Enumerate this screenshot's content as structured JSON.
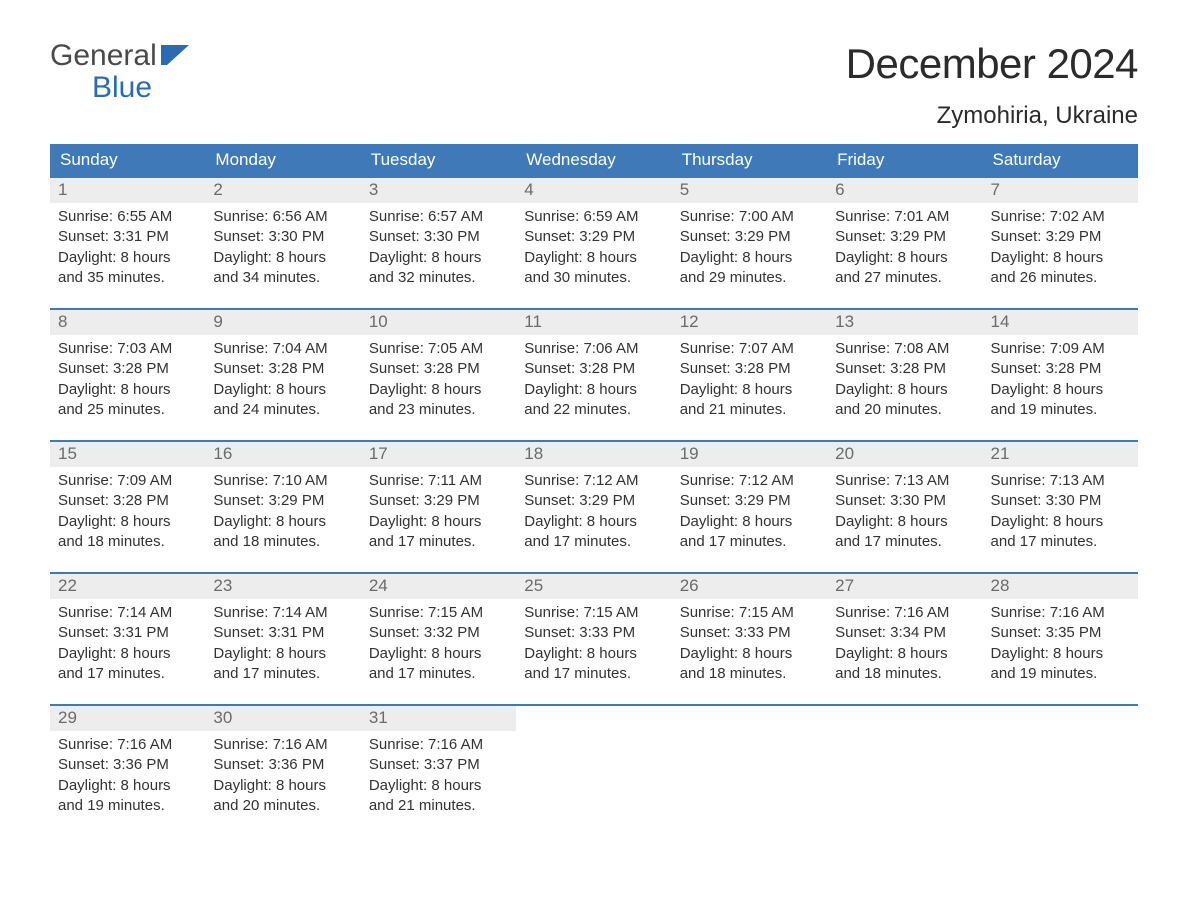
{
  "logo": {
    "word1": "General",
    "word2": "Blue"
  },
  "title": {
    "month": "December 2024",
    "location": "Zymohiria, Ukraine"
  },
  "colors": {
    "header_bg": "#3f79b7",
    "row_border": "#3f79b7",
    "daynum_bg": "#ededed",
    "daynum_fg": "#6b6b6b",
    "text": "#333333",
    "logo_gray": "#4a4a4a",
    "logo_blue": "#2b6bb2",
    "background": "#ffffff"
  },
  "typography": {
    "title_month_fontsize": 42,
    "title_location_fontsize": 24,
    "day_header_fontsize": 17,
    "day_number_fontsize": 17,
    "detail_fontsize": 15,
    "logo_fontsize": 30
  },
  "layout": {
    "columns": 7,
    "rows": 5,
    "cell_min_height": 120
  },
  "day_headers": [
    "Sunday",
    "Monday",
    "Tuesday",
    "Wednesday",
    "Thursday",
    "Friday",
    "Saturday"
  ],
  "weeks": [
    [
      {
        "day": "1",
        "sunrise": "Sunrise: 6:55 AM",
        "sunset": "Sunset: 3:31 PM",
        "dl1": "Daylight: 8 hours",
        "dl2": "and 35 minutes."
      },
      {
        "day": "2",
        "sunrise": "Sunrise: 6:56 AM",
        "sunset": "Sunset: 3:30 PM",
        "dl1": "Daylight: 8 hours",
        "dl2": "and 34 minutes."
      },
      {
        "day": "3",
        "sunrise": "Sunrise: 6:57 AM",
        "sunset": "Sunset: 3:30 PM",
        "dl1": "Daylight: 8 hours",
        "dl2": "and 32 minutes."
      },
      {
        "day": "4",
        "sunrise": "Sunrise: 6:59 AM",
        "sunset": "Sunset: 3:29 PM",
        "dl1": "Daylight: 8 hours",
        "dl2": "and 30 minutes."
      },
      {
        "day": "5",
        "sunrise": "Sunrise: 7:00 AM",
        "sunset": "Sunset: 3:29 PM",
        "dl1": "Daylight: 8 hours",
        "dl2": "and 29 minutes."
      },
      {
        "day": "6",
        "sunrise": "Sunrise: 7:01 AM",
        "sunset": "Sunset: 3:29 PM",
        "dl1": "Daylight: 8 hours",
        "dl2": "and 27 minutes."
      },
      {
        "day": "7",
        "sunrise": "Sunrise: 7:02 AM",
        "sunset": "Sunset: 3:29 PM",
        "dl1": "Daylight: 8 hours",
        "dl2": "and 26 minutes."
      }
    ],
    [
      {
        "day": "8",
        "sunrise": "Sunrise: 7:03 AM",
        "sunset": "Sunset: 3:28 PM",
        "dl1": "Daylight: 8 hours",
        "dl2": "and 25 minutes."
      },
      {
        "day": "9",
        "sunrise": "Sunrise: 7:04 AM",
        "sunset": "Sunset: 3:28 PM",
        "dl1": "Daylight: 8 hours",
        "dl2": "and 24 minutes."
      },
      {
        "day": "10",
        "sunrise": "Sunrise: 7:05 AM",
        "sunset": "Sunset: 3:28 PM",
        "dl1": "Daylight: 8 hours",
        "dl2": "and 23 minutes."
      },
      {
        "day": "11",
        "sunrise": "Sunrise: 7:06 AM",
        "sunset": "Sunset: 3:28 PM",
        "dl1": "Daylight: 8 hours",
        "dl2": "and 22 minutes."
      },
      {
        "day": "12",
        "sunrise": "Sunrise: 7:07 AM",
        "sunset": "Sunset: 3:28 PM",
        "dl1": "Daylight: 8 hours",
        "dl2": "and 21 minutes."
      },
      {
        "day": "13",
        "sunrise": "Sunrise: 7:08 AM",
        "sunset": "Sunset: 3:28 PM",
        "dl1": "Daylight: 8 hours",
        "dl2": "and 20 minutes."
      },
      {
        "day": "14",
        "sunrise": "Sunrise: 7:09 AM",
        "sunset": "Sunset: 3:28 PM",
        "dl1": "Daylight: 8 hours",
        "dl2": "and 19 minutes."
      }
    ],
    [
      {
        "day": "15",
        "sunrise": "Sunrise: 7:09 AM",
        "sunset": "Sunset: 3:28 PM",
        "dl1": "Daylight: 8 hours",
        "dl2": "and 18 minutes."
      },
      {
        "day": "16",
        "sunrise": "Sunrise: 7:10 AM",
        "sunset": "Sunset: 3:29 PM",
        "dl1": "Daylight: 8 hours",
        "dl2": "and 18 minutes."
      },
      {
        "day": "17",
        "sunrise": "Sunrise: 7:11 AM",
        "sunset": "Sunset: 3:29 PM",
        "dl1": "Daylight: 8 hours",
        "dl2": "and 17 minutes."
      },
      {
        "day": "18",
        "sunrise": "Sunrise: 7:12 AM",
        "sunset": "Sunset: 3:29 PM",
        "dl1": "Daylight: 8 hours",
        "dl2": "and 17 minutes."
      },
      {
        "day": "19",
        "sunrise": "Sunrise: 7:12 AM",
        "sunset": "Sunset: 3:29 PM",
        "dl1": "Daylight: 8 hours",
        "dl2": "and 17 minutes."
      },
      {
        "day": "20",
        "sunrise": "Sunrise: 7:13 AM",
        "sunset": "Sunset: 3:30 PM",
        "dl1": "Daylight: 8 hours",
        "dl2": "and 17 minutes."
      },
      {
        "day": "21",
        "sunrise": "Sunrise: 7:13 AM",
        "sunset": "Sunset: 3:30 PM",
        "dl1": "Daylight: 8 hours",
        "dl2": "and 17 minutes."
      }
    ],
    [
      {
        "day": "22",
        "sunrise": "Sunrise: 7:14 AM",
        "sunset": "Sunset: 3:31 PM",
        "dl1": "Daylight: 8 hours",
        "dl2": "and 17 minutes."
      },
      {
        "day": "23",
        "sunrise": "Sunrise: 7:14 AM",
        "sunset": "Sunset: 3:31 PM",
        "dl1": "Daylight: 8 hours",
        "dl2": "and 17 minutes."
      },
      {
        "day": "24",
        "sunrise": "Sunrise: 7:15 AM",
        "sunset": "Sunset: 3:32 PM",
        "dl1": "Daylight: 8 hours",
        "dl2": "and 17 minutes."
      },
      {
        "day": "25",
        "sunrise": "Sunrise: 7:15 AM",
        "sunset": "Sunset: 3:33 PM",
        "dl1": "Daylight: 8 hours",
        "dl2": "and 17 minutes."
      },
      {
        "day": "26",
        "sunrise": "Sunrise: 7:15 AM",
        "sunset": "Sunset: 3:33 PM",
        "dl1": "Daylight: 8 hours",
        "dl2": "and 18 minutes."
      },
      {
        "day": "27",
        "sunrise": "Sunrise: 7:16 AM",
        "sunset": "Sunset: 3:34 PM",
        "dl1": "Daylight: 8 hours",
        "dl2": "and 18 minutes."
      },
      {
        "day": "28",
        "sunrise": "Sunrise: 7:16 AM",
        "sunset": "Sunset: 3:35 PM",
        "dl1": "Daylight: 8 hours",
        "dl2": "and 19 minutes."
      }
    ],
    [
      {
        "day": "29",
        "sunrise": "Sunrise: 7:16 AM",
        "sunset": "Sunset: 3:36 PM",
        "dl1": "Daylight: 8 hours",
        "dl2": "and 19 minutes."
      },
      {
        "day": "30",
        "sunrise": "Sunrise: 7:16 AM",
        "sunset": "Sunset: 3:36 PM",
        "dl1": "Daylight: 8 hours",
        "dl2": "and 20 minutes."
      },
      {
        "day": "31",
        "sunrise": "Sunrise: 7:16 AM",
        "sunset": "Sunset: 3:37 PM",
        "dl1": "Daylight: 8 hours",
        "dl2": "and 21 minutes."
      },
      {
        "empty": true
      },
      {
        "empty": true
      },
      {
        "empty": true
      },
      {
        "empty": true
      }
    ]
  ]
}
